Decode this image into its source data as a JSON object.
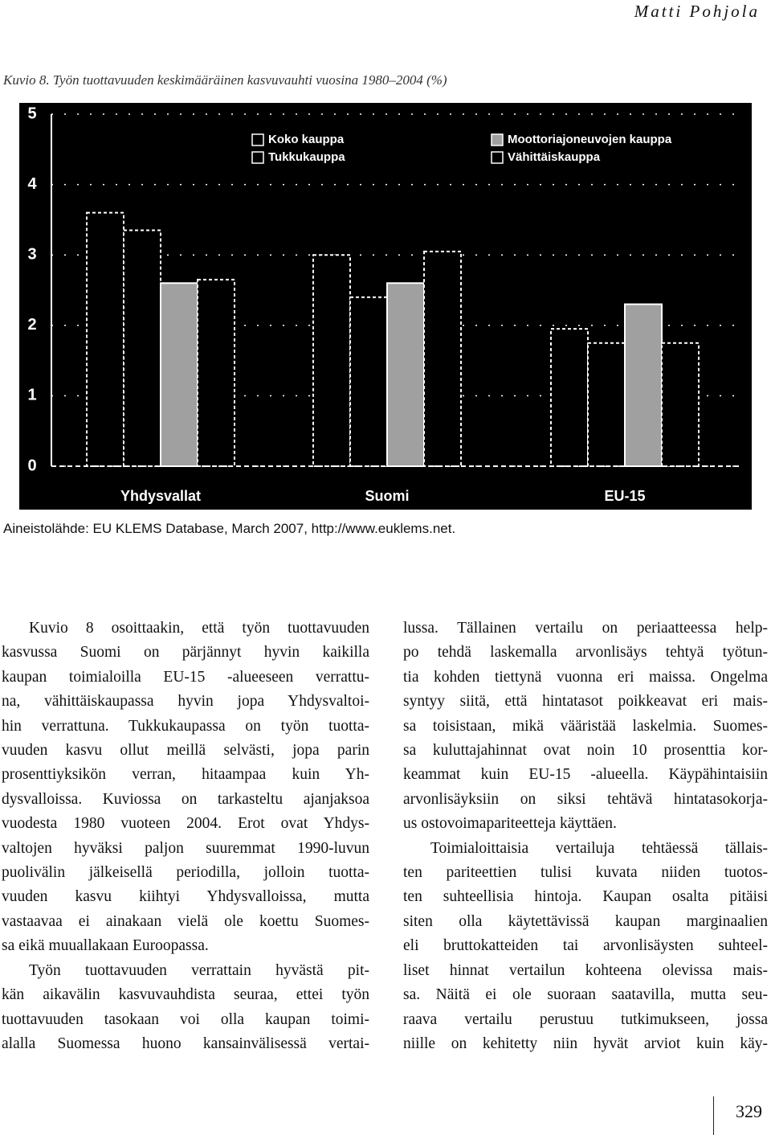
{
  "header": {
    "author": "Matti Pohjola"
  },
  "figure": {
    "caption": "Kuvio 8. Työn tuottavuuden keskimääräinen kasvuvauhti vuosina 1980–2004 (%)",
    "source": "Aineistolähde: EU KLEMS Database, March 2007, http://www.euklems.net."
  },
  "chart_data": {
    "type": "bar",
    "categories": [
      "Yhdysvallat",
      "Suomi",
      "EU-15"
    ],
    "series": [
      {
        "name": "Koko kauppa",
        "color": "#000000",
        "values": [
          3.6,
          3.0,
          1.95
        ]
      },
      {
        "name": "Tukkukauppa",
        "color": "#000000",
        "values": [
          3.35,
          2.4,
          1.75
        ]
      },
      {
        "name": "Moottoriajoneuvojen kauppa",
        "color": "#a0a0a0",
        "values": [
          2.6,
          2.6,
          2.3
        ]
      },
      {
        "name": "Vähittäiskauppa",
        "color": "#000000",
        "values": [
          2.65,
          3.05,
          1.75
        ]
      }
    ],
    "ylim": [
      0,
      5
    ],
    "yticks": [
      0,
      1,
      2,
      3,
      4,
      5
    ]
  },
  "body": {
    "left": [
      [
        "Kuvio 8 osoittaakin, että työn tuottavuuden",
        "kasvussa Suomi on pärjännyt hyvin kaikilla",
        "kaupan toimialoilla EU-15 -alueeseen verrattu-",
        "na, vähittäiskaupassa hyvin jopa Yhdysvaltoi-",
        "hin verrattuna. Tukkukaupassa on työn tuotta-",
        "vuuden kasvu ollut meillä selvästi, jopa parin",
        "prosenttiyksikön verran, hitaampaa kuin Yh-",
        "dysvalloissa. Kuviossa on tarkasteltu ajanjaksoa",
        "vuodesta 1980 vuoteen 2004. Erot ovat Yhdys-",
        "valtojen hyväksi paljon suuremmat 1990-luvun",
        "puolivälin jälkeisellä periodilla, jolloin tuotta-",
        "vuuden kasvu kiihtyi Yhdysvalloissa, mutta",
        "vastaavaa ei ainakaan vielä ole koettu Suomes-",
        "sa eikä muuallakaan Euroopassa."
      ],
      [
        "Työn tuottavuuden verrattain hyvästä pit-",
        "kän aikavälin kasvuvauhdista seuraa, ettei työn",
        "tuottavuuden tasokaan voi olla kaupan toimi-",
        "alalla Suomessa huono kansainvälisessä vertai-"
      ]
    ],
    "right": [
      [
        "lussa. Tällainen vertailu on periaatteessa help-",
        "po tehdä laskemalla arvonlisäys tehtyä työtun-",
        "tia kohden tiettynä vuonna eri maissa. Ongelma",
        "syntyy siitä, että hintatasot poikkeavat eri mais-",
        "sa toisistaan, mikä vääristää laskelmia. Suomes-",
        "sa kuluttajahinnat ovat noin 10 prosenttia kor-",
        "keammat kuin EU-15 -alueella. Käypähintaisiin",
        "arvonlisäyksiin on siksi tehtävä hintatasokorja-",
        "us ostovoimapariteetteja käyttäen."
      ],
      [
        "Toimialoittaisia vertailuja tehtäessä tällais-",
        "ten pariteettien tulisi kuvata niiden tuotos-",
        "ten suhteellisia hintoja. Kaupan osalta pitäisi",
        "siten olla käytettävissä kaupan marginaalien",
        "eli bruttokatteiden tai arvonlisäysten suhteel-",
        "liset hinnat vertailun kohteena olevissa mais-",
        "sa. Näitä ei ole suoraan saatavilla, mutta seu-",
        "raava vertailu perustuu tutkimukseen, jossa",
        "niille on kehitetty niin hyvät arviot kuin käy-"
      ]
    ]
  },
  "footer": {
    "page": "329"
  }
}
